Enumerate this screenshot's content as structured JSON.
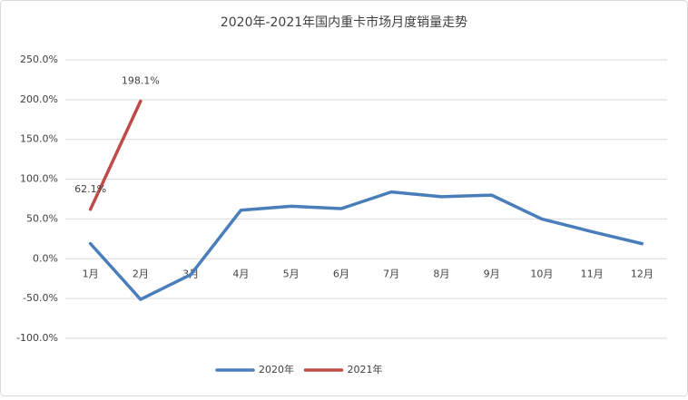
{
  "chart_data": {
    "type": "line",
    "title": "2020年-2021年国内重卡市场月度销量走势",
    "categories": [
      "1月",
      "2月",
      "3月",
      "4月",
      "5月",
      "6月",
      "7月",
      "8月",
      "9月",
      "10月",
      "11月",
      "12月"
    ],
    "series": [
      {
        "name": "2020年",
        "color": "#4a7ebb",
        "values": [
          19,
          -51,
          -20,
          61,
          66,
          63,
          84,
          78,
          80,
          50,
          34,
          19
        ]
      },
      {
        "name": "2021年",
        "color": "#be4b48",
        "values": [
          62.1,
          198.1,
          null,
          null,
          null,
          null,
          null,
          null,
          null,
          null,
          null,
          null
        ],
        "value_labels": [
          "62.1%",
          "198.1%",
          null,
          null,
          null,
          null,
          null,
          null,
          null,
          null,
          null,
          null
        ]
      }
    ],
    "ylim": [
      -100,
      250
    ],
    "yticks": [
      {
        "value": -100,
        "label": "-100.0%"
      },
      {
        "value": -50,
        "label": "-50.0%"
      },
      {
        "value": 0,
        "label": "0.0%"
      },
      {
        "value": 50,
        "label": "50.0%"
      },
      {
        "value": 100,
        "label": "100.0%"
      },
      {
        "value": 150,
        "label": "150.0%"
      },
      {
        "value": 200,
        "label": "200.0%"
      },
      {
        "value": 250,
        "label": "250.0%"
      }
    ],
    "grid": true,
    "legend": "bottom"
  }
}
